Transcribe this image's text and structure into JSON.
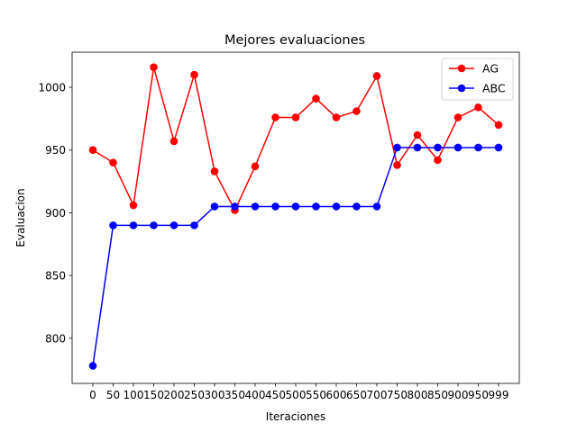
{
  "chart_data": {
    "type": "line",
    "title": "Mejores evaluaciones",
    "xlabel": "Iteraciones",
    "ylabel": "Evaluacion",
    "categories": [
      "0",
      "50",
      "100",
      "150",
      "200",
      "250",
      "300",
      "350",
      "400",
      "450",
      "500",
      "550",
      "600",
      "650",
      "700",
      "750",
      "800",
      "850",
      "900",
      "950",
      "999"
    ],
    "y_ticks": [
      800,
      850,
      900,
      950,
      1000
    ],
    "ylim": [
      764,
      1028
    ],
    "grid": false,
    "legend_position": "top-right",
    "series": [
      {
        "name": "AG",
        "color": "#ff0000",
        "values": [
          950,
          940,
          906,
          1016,
          957,
          1010,
          933,
          902,
          937,
          976,
          976,
          991,
          976,
          981,
          1009,
          938,
          962,
          942,
          976,
          984,
          970
        ]
      },
      {
        "name": "ABC",
        "color": "#0000ff",
        "values": [
          778,
          890,
          890,
          890,
          890,
          890,
          905,
          905,
          905,
          905,
          905,
          905,
          905,
          905,
          905,
          952,
          952,
          952,
          952,
          952,
          952
        ]
      }
    ]
  }
}
